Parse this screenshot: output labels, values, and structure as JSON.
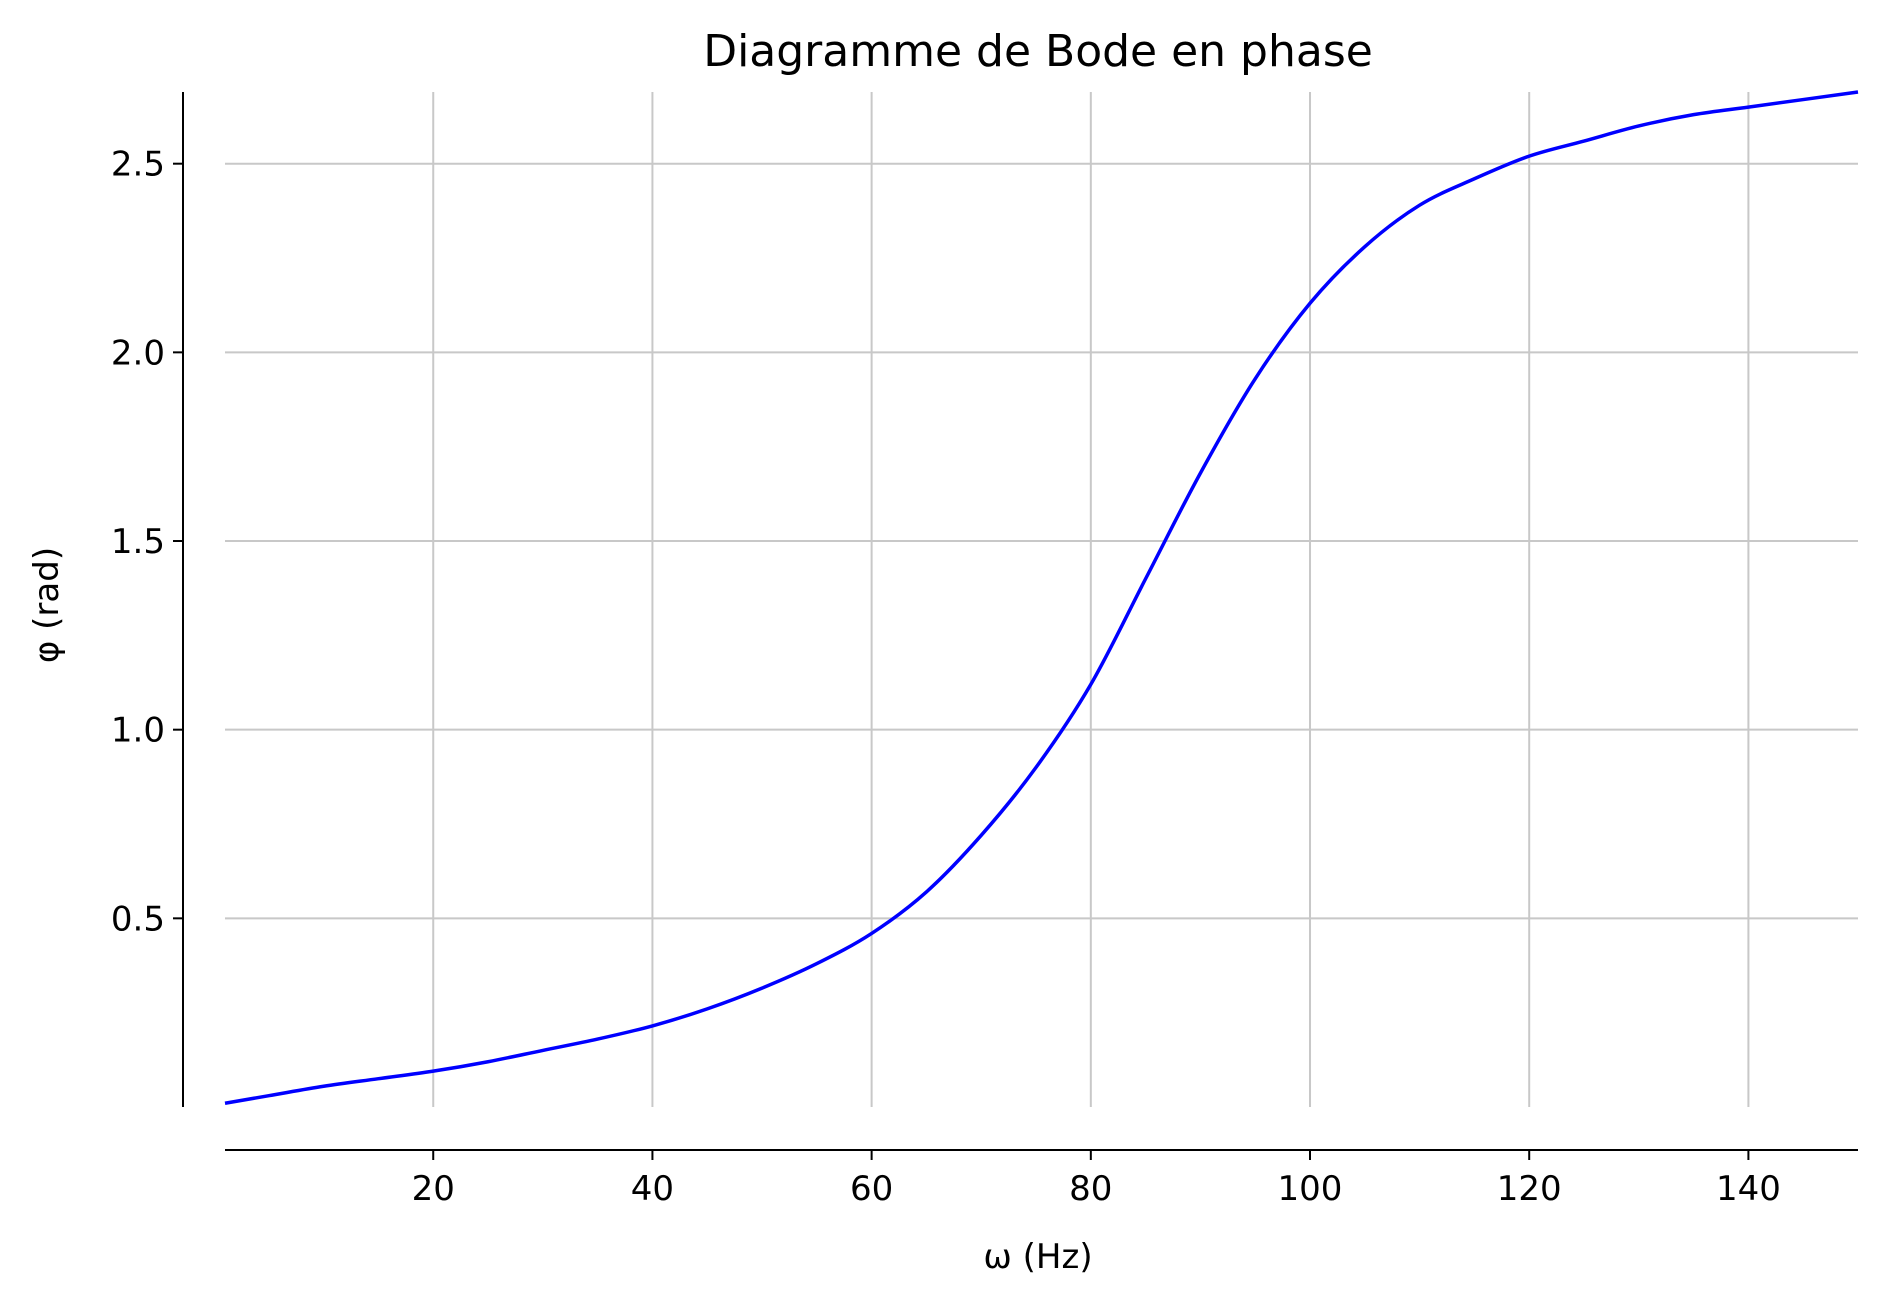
{
  "chart_data": {
    "type": "line",
    "title": "Diagramme de Bode en phase",
    "xlabel": "ω (Hz)",
    "ylabel": "φ (rad)",
    "xlim": [
      1,
      150
    ],
    "ylim": [
      0.0,
      2.69
    ],
    "xticks": [
      20,
      40,
      60,
      80,
      100,
      120,
      140
    ],
    "xtick_labels": [
      "20",
      "40",
      "60",
      "80",
      "100",
      "120",
      "140"
    ],
    "yticks": [
      0.5,
      1.0,
      1.5,
      2.0,
      2.5
    ],
    "ytick_labels": [
      "0.5",
      "1.0",
      "1.5",
      "2.0",
      "2.5"
    ],
    "grid": true,
    "legend": "none",
    "series": [
      {
        "color": "#0000ff",
        "x": [
          1,
          5,
          10,
          15,
          20,
          25,
          30,
          35,
          40,
          45,
          50,
          55,
          60,
          65,
          70,
          75,
          80,
          85,
          90,
          95,
          100,
          105,
          110,
          115,
          120,
          125,
          130,
          135,
          140,
          145,
          150
        ],
        "y": [
          0.01,
          0.03,
          0.055,
          0.075,
          0.095,
          0.12,
          0.15,
          0.18,
          0.215,
          0.26,
          0.315,
          0.38,
          0.46,
          0.57,
          0.72,
          0.9,
          1.12,
          1.4,
          1.68,
          1.93,
          2.13,
          2.28,
          2.39,
          2.46,
          2.52,
          2.56,
          2.6,
          2.63,
          2.65,
          2.67,
          2.69
        ]
      }
    ]
  }
}
